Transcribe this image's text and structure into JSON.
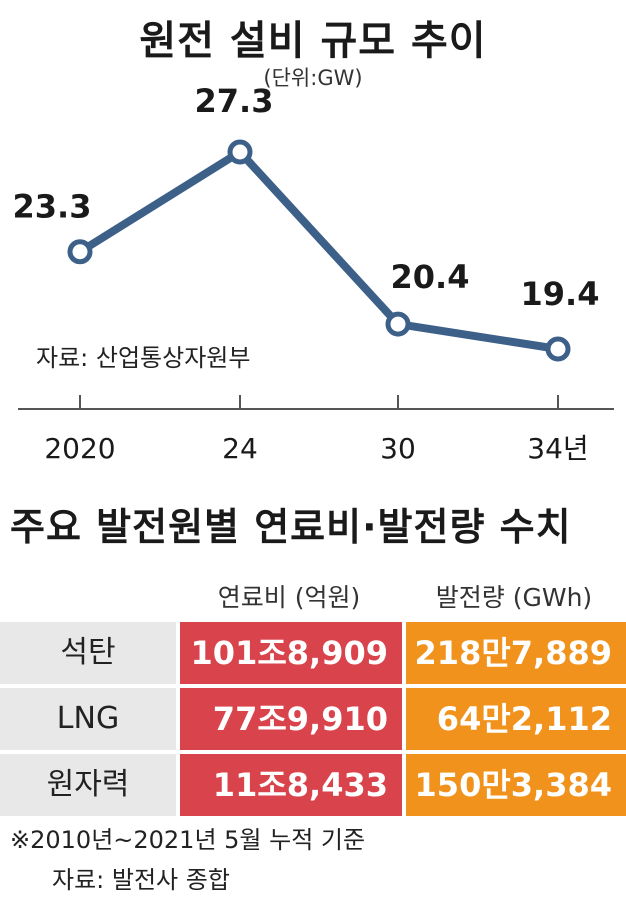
{
  "chart_data": [
    {
      "type": "line",
      "title": "원전 설비 규모 추이",
      "subtitle": "(단위:GW)",
      "x": [
        "2020",
        "24",
        "30",
        "34년"
      ],
      "series": [
        {
          "values": [
            23.3,
            27.3,
            20.4,
            19.4
          ]
        }
      ],
      "data_labels": [
        "23.3",
        "27.3",
        "20.4",
        "19.4"
      ],
      "source": "자료: 산업통상자원부",
      "line_color": "#3d6089",
      "grid": false
    },
    {
      "type": "table",
      "title": "주요 발전원별 연료비·발전량 수치",
      "columns": [
        "연료비 (억원)",
        "발전량 (GWh)"
      ],
      "rows": [
        {
          "label": "석탄",
          "fuel_cost": "101조8,909",
          "generation": "218만7,889"
        },
        {
          "label": "LNG",
          "fuel_cost": "77조9,910",
          "generation": "64만2,112"
        },
        {
          "label": "원자력",
          "fuel_cost": "11조8,433",
          "generation": "150만3,384"
        }
      ],
      "note": "※2010년~2021년 5월 누적 기준",
      "source": "자료: 발전사 종합",
      "colors": {
        "fuel_cost": "#d9434c",
        "generation": "#f0921b",
        "label_bg": "#e8e8e8"
      }
    }
  ]
}
